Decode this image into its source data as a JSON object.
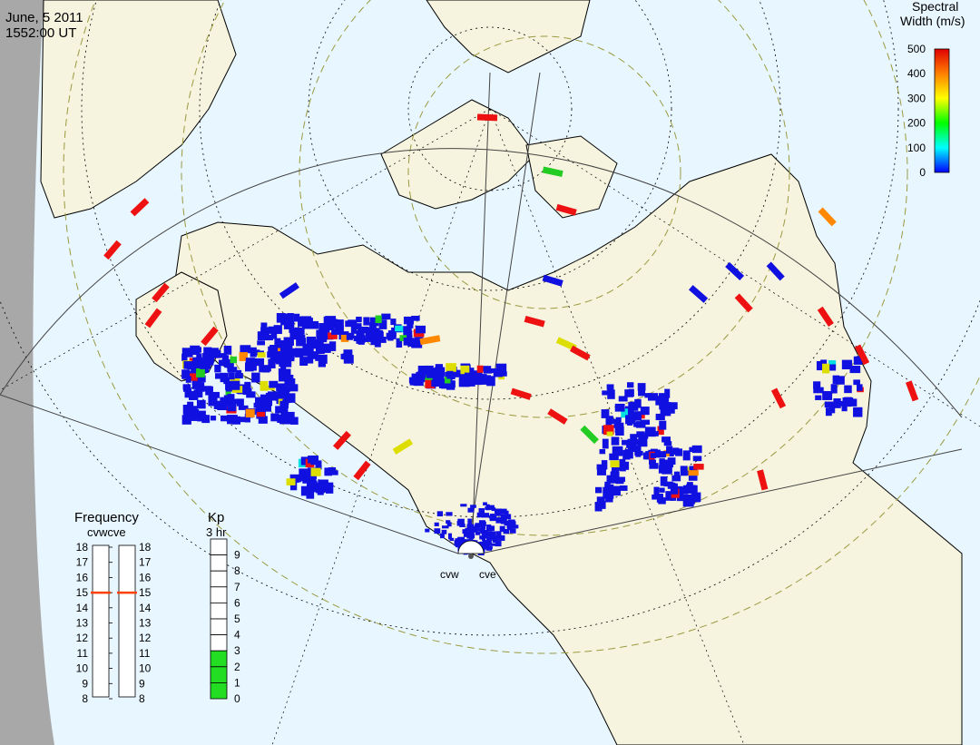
{
  "header": {
    "date": "June, 5 2011",
    "time": "1552:00 UT"
  },
  "colorbar": {
    "title_line1": "Spectral",
    "title_line2": "Width (m/s)",
    "ticks": [
      "500",
      "400",
      "300",
      "200",
      "100",
      "0"
    ],
    "colors": [
      "#e00000",
      "#ff8000",
      "#ffff00",
      "#00ff00",
      "#00ffff",
      "#0000ff"
    ]
  },
  "frequency_panel": {
    "title": "Frequency",
    "radar_labels": "cvwcve",
    "ticks": [
      "18",
      "17",
      "16",
      "15",
      "14",
      "13",
      "12",
      "11",
      "10",
      "9",
      "8"
    ],
    "cvw_value": 15,
    "cve_value": 15,
    "marker_color": "#ff4000"
  },
  "kp_panel": {
    "title": "Kp",
    "subtitle": "3 hr",
    "ticks": [
      "9",
      "8",
      "7",
      "6",
      "5",
      "4",
      "3",
      "2",
      "1",
      "0"
    ],
    "value": 3,
    "fill_color": "#22dd22"
  },
  "radars": {
    "west_label": "cvw",
    "east_label": "cve"
  },
  "map_colors": {
    "ocean": "#e8f6ff",
    "land": "#f6f3de",
    "offglobe": "#a8a8a8"
  },
  "scatter_colors": {
    "blue": "#1010e0",
    "cyan": "#00e0e0",
    "green": "#22cc22",
    "yellow": "#dddd00",
    "orange": "#ff8800",
    "red": "#ee1111"
  }
}
